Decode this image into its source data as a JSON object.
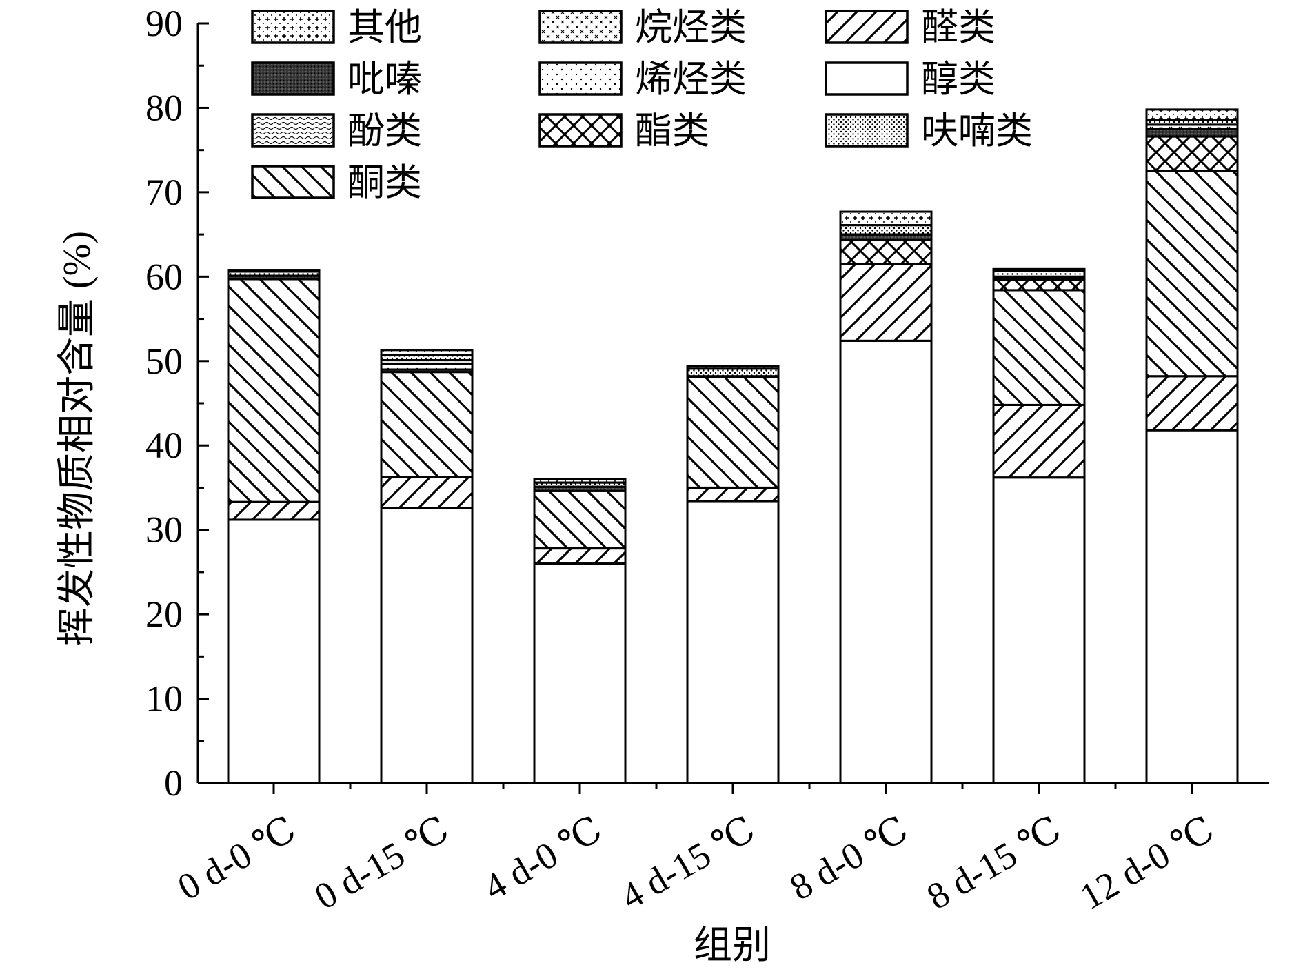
{
  "chart_data": {
    "type": "bar",
    "stacked": true,
    "title": "",
    "xlabel": "组别",
    "ylabel": "挥发性物质相对含量 (%)",
    "ylim": [
      0,
      90
    ],
    "yticks": [
      0,
      10,
      20,
      30,
      40,
      50,
      60,
      70,
      80,
      90
    ],
    "grid": false,
    "legend_position": "top-left",
    "categories": [
      "0 d-0 ℃",
      "0 d-15 ℃",
      "4 d-0 ℃",
      "4 d-15 ℃",
      "8 d-0 ℃",
      "8 d-15 ℃",
      "12 d-0 ℃"
    ],
    "series": [
      {
        "name": "醇类",
        "pattern": "blank",
        "values": [
          31.2,
          32.6,
          26.0,
          33.4,
          52.4,
          36.2,
          41.8
        ]
      },
      {
        "name": "醛类",
        "pattern": "hatch-forward",
        "values": [
          2.1,
          3.7,
          1.8,
          1.6,
          9.1,
          8.6,
          6.4
        ]
      },
      {
        "name": "酮类",
        "pattern": "hatch-back",
        "values": [
          26.4,
          12.4,
          6.8,
          13.1,
          0.0,
          13.6,
          24.3
        ]
      },
      {
        "name": "酯类",
        "pattern": "crosshatch",
        "values": [
          0.0,
          0.0,
          0.0,
          0.0,
          2.9,
          1.2,
          4.1
        ]
      },
      {
        "name": "酚类",
        "pattern": "wave",
        "values": [
          0.0,
          0.0,
          0.0,
          0.0,
          0.0,
          0.0,
          0.0
        ]
      },
      {
        "name": "吡嗪",
        "pattern": "dense-dots",
        "values": [
          0.4,
          0.3,
          0.5,
          0.1,
          0.6,
          0.2,
          0.9
        ]
      },
      {
        "name": "烯烃类",
        "pattern": "sparse-dots",
        "values": [
          0.0,
          0.7,
          0.0,
          0.0,
          0.0,
          0.0,
          0.0
        ]
      },
      {
        "name": "烷烃类",
        "pattern": "x-marks",
        "values": [
          0.0,
          0.4,
          0.0,
          0.0,
          0.0,
          0.2,
          0.5
        ]
      },
      {
        "name": "呋喃类",
        "pattern": "fine-dots",
        "values": [
          0.5,
          0.6,
          0.5,
          0.9,
          1.1,
          0.7,
          0.6
        ]
      },
      {
        "name": "其他",
        "pattern": "plus-marks",
        "values": [
          0.2,
          0.6,
          0.4,
          0.3,
          1.6,
          0.2,
          1.2
        ]
      }
    ],
    "legend_order": [
      "其他",
      "烷烃类",
      "醛类",
      "吡嗪",
      "烯烃类",
      "醇类",
      "酚类",
      "酯类",
      "呋喃类",
      "酮类"
    ],
    "colors": {
      "stroke": "#000000",
      "fill": "#ffffff"
    }
  }
}
